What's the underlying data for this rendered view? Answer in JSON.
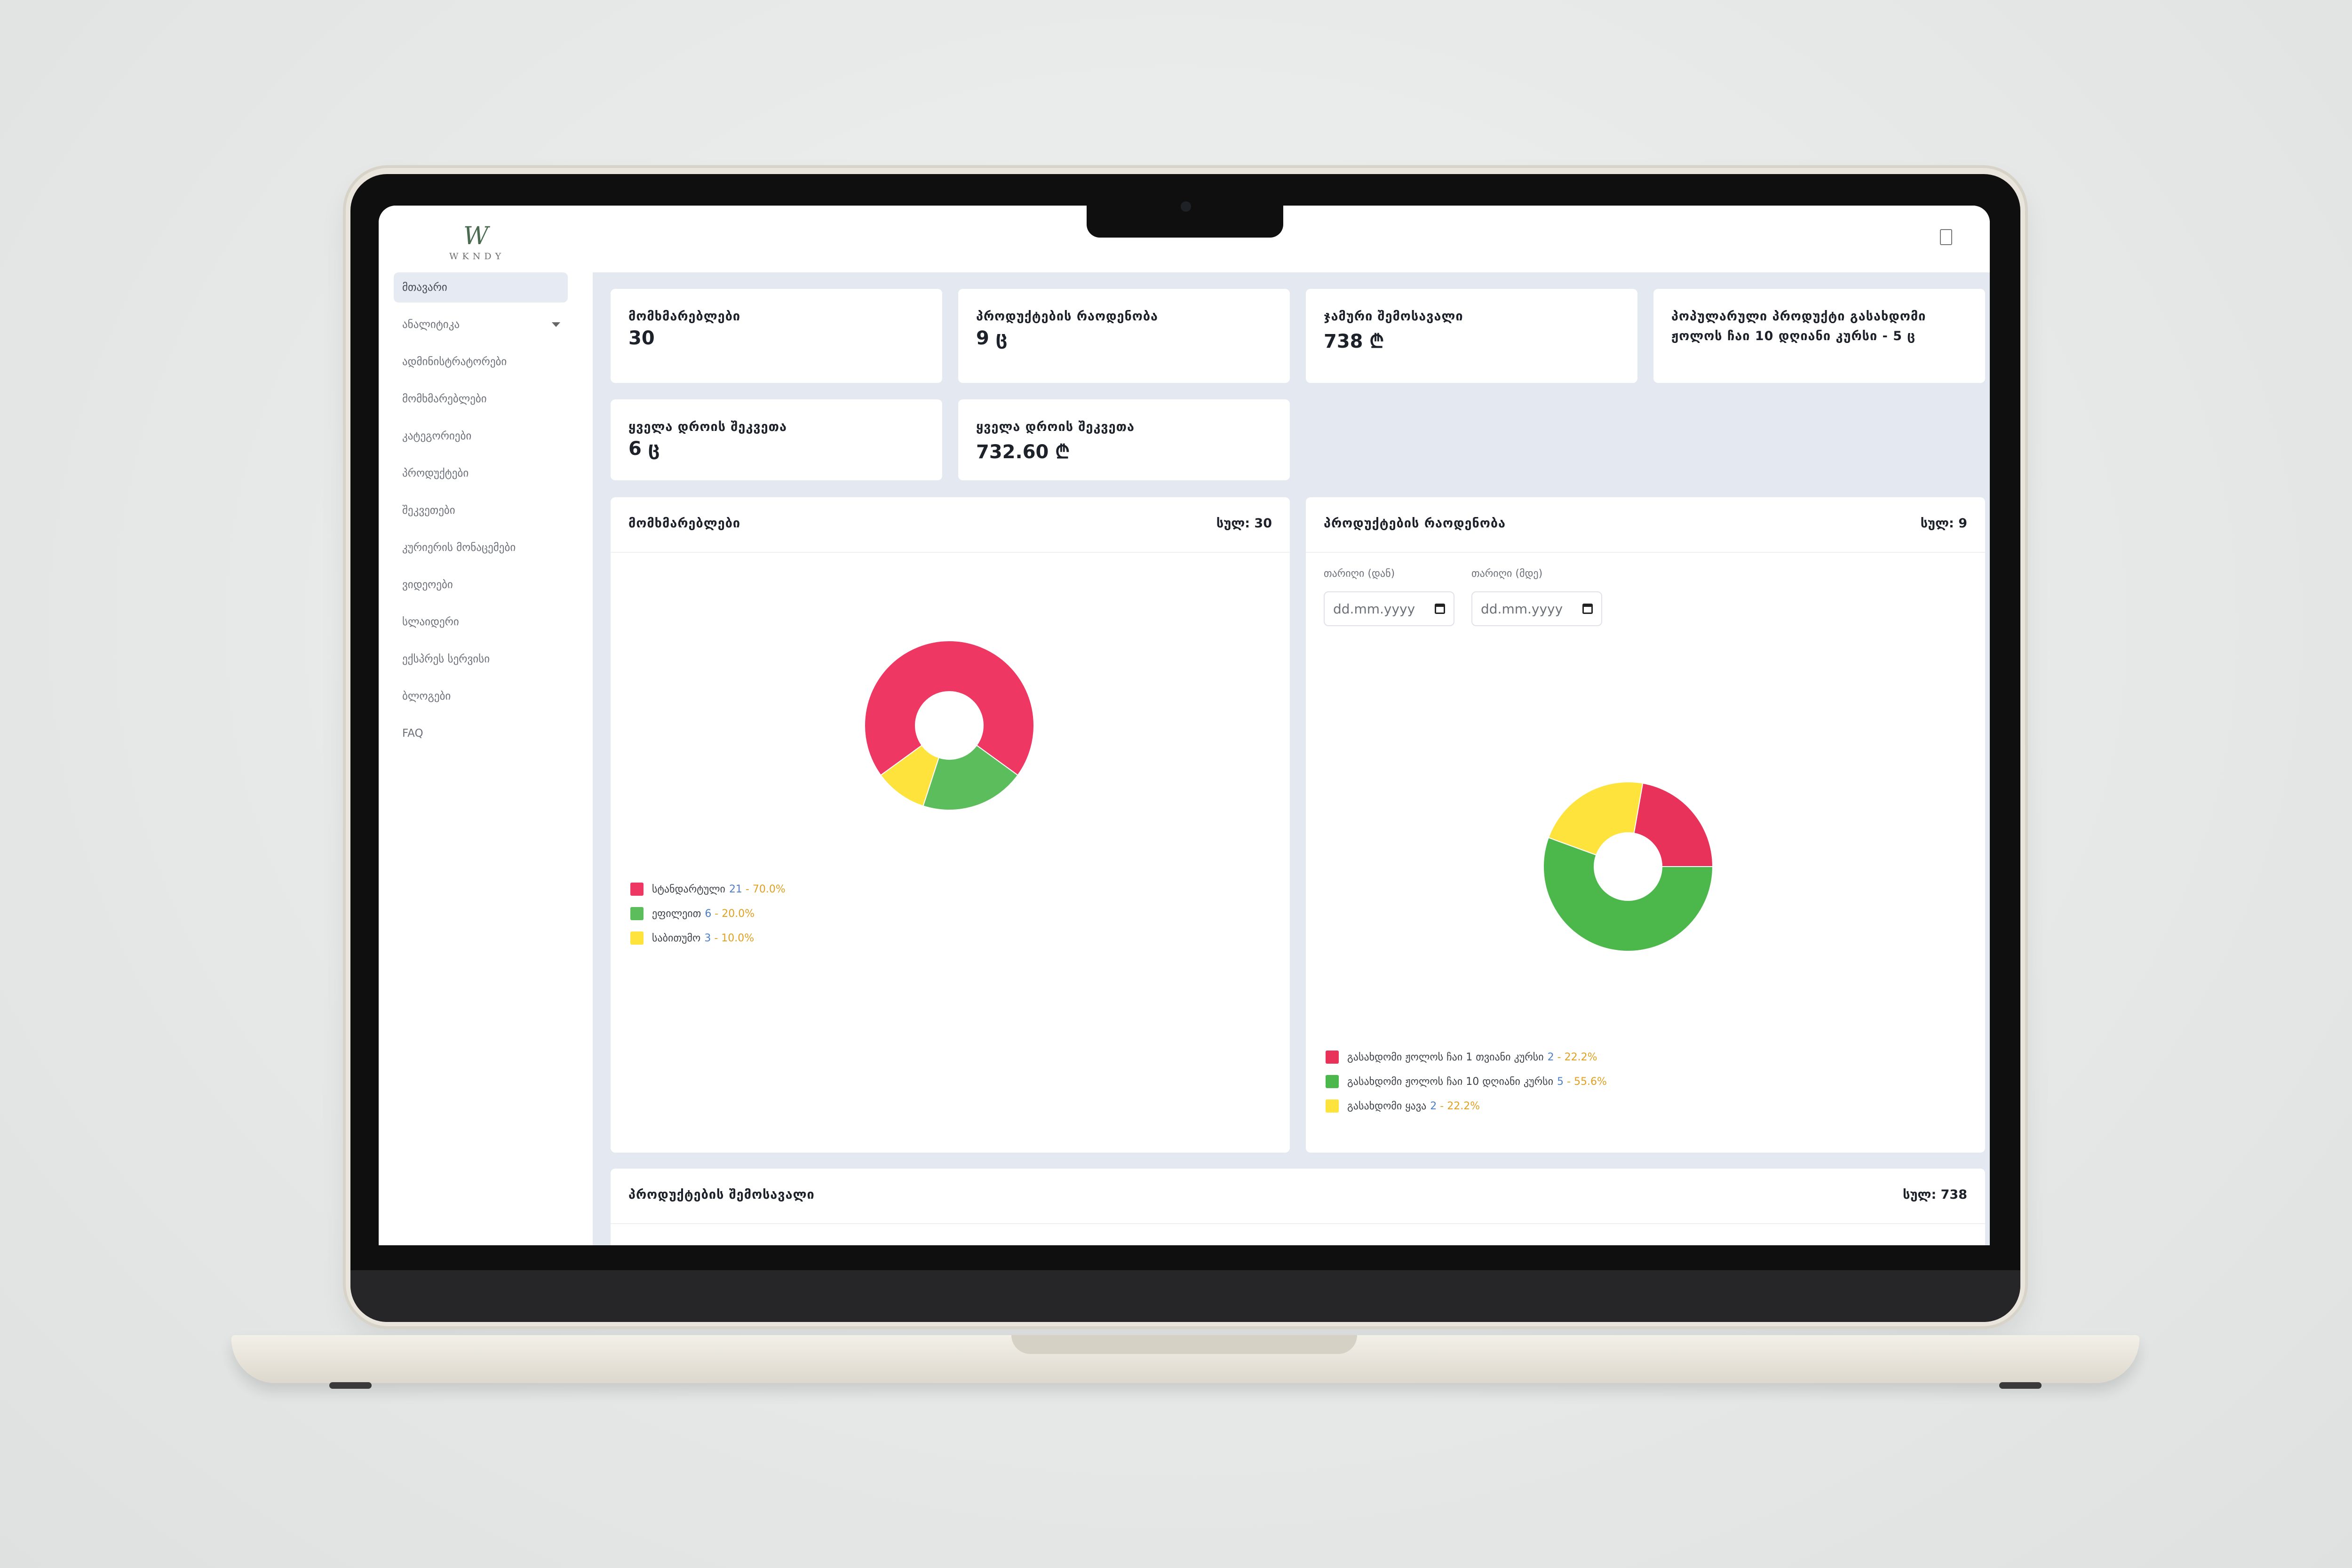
{
  "brand": {
    "logo_mark": "W",
    "logo_text": "WKNDY"
  },
  "sidebar": {
    "items": [
      {
        "label": "მთავარი",
        "active": true
      },
      {
        "label": "ანალიტიკა",
        "has_caret": true
      },
      {
        "label": "ადმინისტრატორები"
      },
      {
        "label": "მომხმარებლები"
      },
      {
        "label": "კატეგორიები"
      },
      {
        "label": "პროდუქტები"
      },
      {
        "label": "შეკვეთები"
      },
      {
        "label": "კურიერის მონაცემები"
      },
      {
        "label": "ვიდეოები"
      },
      {
        "label": "სლაიდერი"
      },
      {
        "label": "ექსპრეს სერვისი"
      },
      {
        "label": "ბლოგები"
      },
      {
        "label": "FAQ"
      }
    ]
  },
  "stats": [
    {
      "title": "მომხმარებლები",
      "value": "30"
    },
    {
      "title": "პროდუქტების რაოდენობა",
      "value": "9 ც"
    },
    {
      "title": "ჯამური შემოსავალი",
      "value": "738 ₾"
    },
    {
      "title": "პოპულარული პროდუქტი გასახდომი ჟოლოს ჩაი 10 დღიანი კურსი - 5 ც",
      "value": ""
    },
    {
      "title": "ყველა დროის შეკვეთა",
      "value": "6 ც"
    },
    {
      "title": "ყველა დროის შეკვეთა",
      "value": "732.60 ₾"
    }
  ],
  "users_panel": {
    "title": "მომხმარებლები",
    "total": "სულ: 30",
    "chart_data": {
      "type": "pie",
      "donut": true,
      "labels": [
        "სტანდარტული",
        "ეფილეით",
        "საბითუმო"
      ],
      "values": [
        21,
        6,
        3
      ],
      "percents": [
        "70.0%",
        "20.0%",
        "10.0%"
      ],
      "colors": [
        "#ee3763",
        "#5cbd5c",
        "#fde33c"
      ]
    }
  },
  "products_panel": {
    "title": "პროდუქტების რაოდენობა",
    "total": "სულ: 9",
    "date_from_label": "თარიღი (დან)",
    "date_to_label": "თარიღი (მდე)",
    "date_placeholder": "dd.mm.yyyy",
    "chart_data": {
      "type": "pie",
      "donut": true,
      "labels": [
        "გასახდომი ჟოლოს ჩაი 1 თვიანი კურსი",
        "გასახდომი ჟოლოს ჩაი 10 დღიანი კურსი",
        "გასახდომი ყავა"
      ],
      "values": [
        2,
        5,
        2
      ],
      "percents": [
        "22.2%",
        "55.6%",
        "22.2%"
      ],
      "colors": [
        "#e8325a",
        "#4cb84c",
        "#fde33c"
      ]
    }
  },
  "revenue_panel": {
    "title": "პროდუქტების შემოსავალი",
    "total": "სულ: 738"
  }
}
